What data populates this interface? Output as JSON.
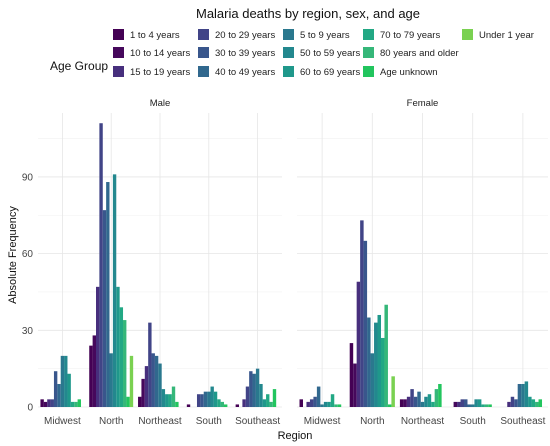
{
  "chart_data": {
    "type": "bar",
    "title": "Malaria deaths by region, sex, and age",
    "xlabel": "Region",
    "ylabel": "Absolute Frequency",
    "ylim": [
      0,
      115
    ],
    "yticks": [
      0,
      30,
      60,
      90
    ],
    "grid": true,
    "legend": {
      "title": "Age Group",
      "placement": "top",
      "entries": [
        {
          "name": "1 to 4 years",
          "color": "#440154"
        },
        {
          "name": "10 to 14 years",
          "color": "#46085c"
        },
        {
          "name": "15 to 19 years",
          "color": "#472f7d"
        },
        {
          "name": "20 to 29 years",
          "color": "#414487"
        },
        {
          "name": "30 to 39 years",
          "color": "#39568c"
        },
        {
          "name": "40 to 49 years",
          "color": "#31688e"
        },
        {
          "name": "5 to 9 years",
          "color": "#2a788e"
        },
        {
          "name": "50 to 59 years",
          "color": "#23888e"
        },
        {
          "name": "60 to 69 years",
          "color": "#1f988b"
        },
        {
          "name": "70 to 79 years",
          "color": "#22a884"
        },
        {
          "name": "80 years and older",
          "color": "#35b779"
        },
        {
          "name": "Age unknown",
          "color": "#22c55e"
        },
        {
          "name": "Under 1 year",
          "color": "#7ad151"
        }
      ]
    },
    "categories": [
      "Midwest",
      "North",
      "Northeast",
      "South",
      "Southeast"
    ],
    "panels": [
      {
        "name": "Male",
        "series": [
          {
            "name": "1 to 4 years",
            "values": [
              3,
              24,
              4,
              1,
              1
            ]
          },
          {
            "name": "10 to 14 years",
            "values": [
              2,
              28,
              11,
              0,
              0
            ]
          },
          {
            "name": "15 to 19 years",
            "values": [
              3,
              47,
              16,
              0,
              3
            ]
          },
          {
            "name": "20 to 29 years",
            "values": [
              3,
              111,
              33,
              5,
              8
            ]
          },
          {
            "name": "30 to 39 years",
            "values": [
              14,
              77,
              21,
              5,
              14
            ]
          },
          {
            "name": "40 to 49 years",
            "values": [
              9,
              88,
              20,
              6,
              13
            ]
          },
          {
            "name": "5 to 9 years",
            "values": [
              20,
              21,
              17,
              6,
              15
            ]
          },
          {
            "name": "50 to 59 years",
            "values": [
              20,
              91,
              7,
              8,
              9
            ]
          },
          {
            "name": "60 to 69 years",
            "values": [
              13,
              47,
              5,
              6,
              3
            ]
          },
          {
            "name": "70 to 79 years",
            "values": [
              2,
              39,
              5,
              3,
              5
            ]
          },
          {
            "name": "80 years and older",
            "values": [
              2,
              34,
              8,
              2,
              2
            ]
          },
          {
            "name": "Age unknown",
            "values": [
              3,
              4,
              2,
              1,
              7
            ]
          },
          {
            "name": "Under 1 year",
            "values": [
              0,
              20,
              0,
              0,
              0
            ]
          }
        ]
      },
      {
        "name": "Female",
        "series": [
          {
            "name": "1 to 4 years",
            "values": [
              3,
              25,
              3,
              0,
              0
            ]
          },
          {
            "name": "10 to 14 years",
            "values": [
              0,
              17,
              3,
              2,
              0
            ]
          },
          {
            "name": "15 to 19 years",
            "values": [
              2,
              49,
              4,
              2,
              2
            ]
          },
          {
            "name": "20 to 29 years",
            "values": [
              3,
              73,
              7,
              3,
              4
            ]
          },
          {
            "name": "30 to 39 years",
            "values": [
              4,
              65,
              4,
              3,
              3
            ]
          },
          {
            "name": "40 to 49 years",
            "values": [
              8,
              35,
              6,
              1,
              9
            ]
          },
          {
            "name": "5 to 9 years",
            "values": [
              1,
              21,
              2,
              1,
              9
            ]
          },
          {
            "name": "50 to 59 years",
            "values": [
              2,
              33,
              4,
              3,
              10
            ]
          },
          {
            "name": "60 to 69 years",
            "values": [
              2,
              36,
              5,
              3,
              4
            ]
          },
          {
            "name": "70 to 79 years",
            "values": [
              5,
              27,
              2,
              1,
              3
            ]
          },
          {
            "name": "80 years and older",
            "values": [
              1,
              40,
              7,
              1,
              2
            ]
          },
          {
            "name": "Age unknown",
            "values": [
              1,
              1,
              9,
              1,
              3
            ]
          },
          {
            "name": "Under 1 year",
            "values": [
              0,
              12,
              0,
              0,
              0
            ]
          }
        ]
      }
    ]
  }
}
